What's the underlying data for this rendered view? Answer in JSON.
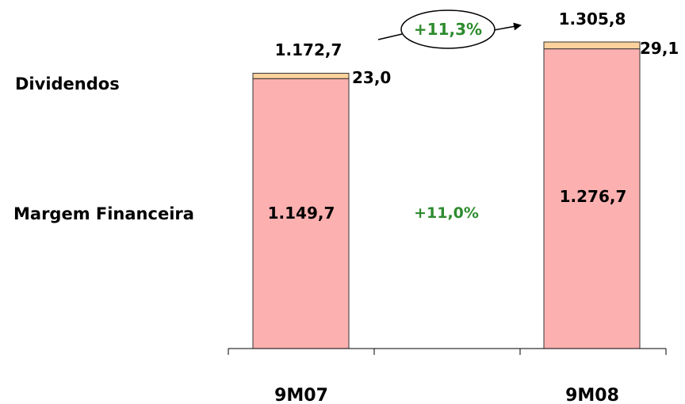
{
  "chart_data": {
    "type": "bar",
    "stacked": true,
    "categories": [
      "9M07",
      "9M08"
    ],
    "ylim": [
      0,
      1305.8
    ],
    "series": [
      {
        "name": "Margem Financeira",
        "values": [
          1149.7,
          1276.7
        ],
        "labels": [
          "1.149,7",
          "1.276,7"
        ],
        "color": "#fdb0b0"
      },
      {
        "name": "Dividendos",
        "values": [
          23.0,
          29.1
        ],
        "labels": [
          "23,0",
          "29,1"
        ],
        "color": "#fcd29c"
      }
    ],
    "totals": [
      1172.7,
      1305.8
    ],
    "total_labels": [
      "1.172,7",
      "1.305,8"
    ],
    "growth_total": "+11,3%",
    "growth_margem": "+11,0%",
    "growth_color": "#2e8b2e",
    "bar_stroke": "#333333"
  }
}
